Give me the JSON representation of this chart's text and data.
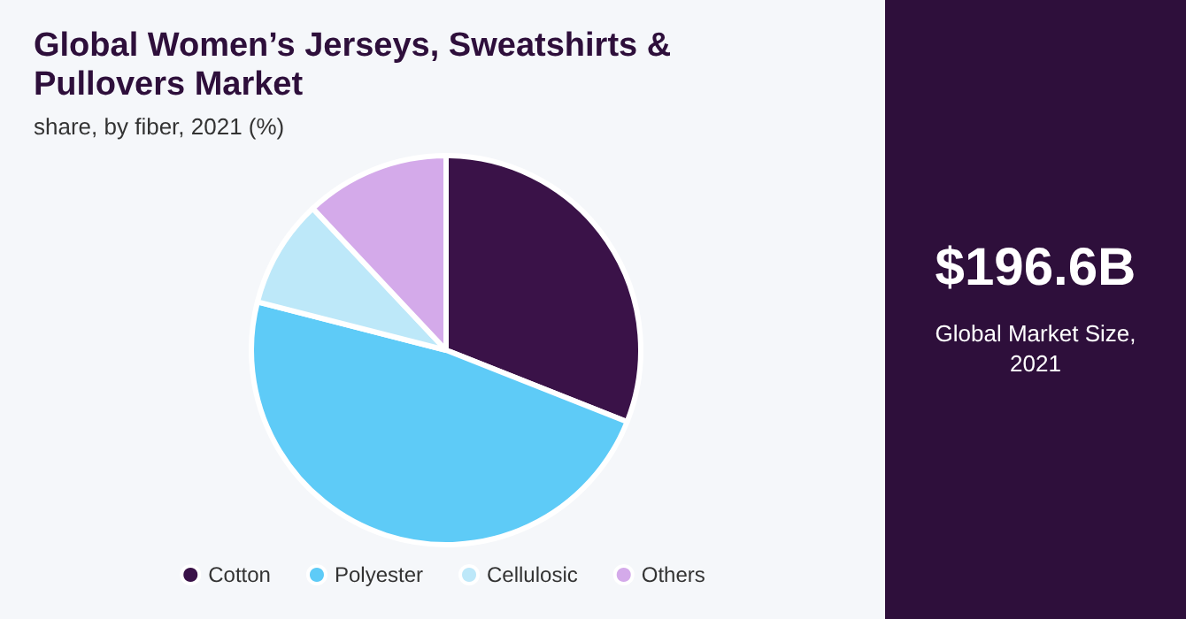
{
  "chart_data": {
    "type": "pie",
    "title": "Global Women’s Jerseys, Sweatshirts & Pullovers Market",
    "subtitle": "share, by fiber, 2021 (%)",
    "categories": [
      "Cotton",
      "Polyester",
      "Cellulosic",
      "Others"
    ],
    "values": [
      31,
      48,
      9,
      12
    ],
    "colors": [
      "#3a1248",
      "#5ecbf7",
      "#bde8f9",
      "#d4aaea"
    ],
    "legend": "bottom",
    "annotations": [
      "$196.6B",
      "Global Market Size, 2021"
    ]
  }
}
